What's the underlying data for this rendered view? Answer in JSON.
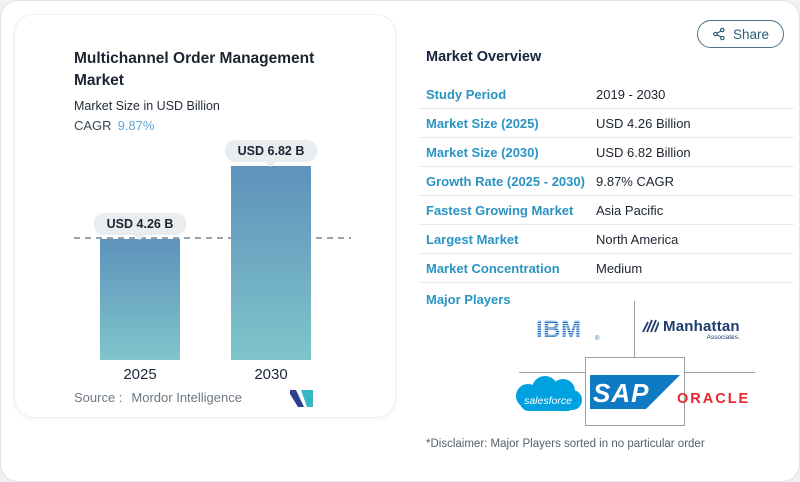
{
  "share": {
    "label": "Share"
  },
  "chart_card": {
    "title": "Multichannel Order Management Market",
    "subtitle": "Market Size in USD Billion",
    "cagr_label": "CAGR",
    "cagr_value": "9.87%",
    "bars": [
      {
        "year": "2025",
        "label": "USD 4.26 B"
      },
      {
        "year": "2030",
        "label": "USD 6.82 B"
      }
    ],
    "source_label": "Source :",
    "source_value": "Mordor Intelligence"
  },
  "chart_data": {
    "type": "bar",
    "title": "Multichannel Order Management Market",
    "ylabel": "Market Size in USD Billion",
    "categories": [
      "2025",
      "2030"
    ],
    "values": [
      4.26,
      6.82
    ],
    "data_labels": [
      "USD 4.26 B",
      "USD 6.82 B"
    ],
    "cagr": "9.87%",
    "reference_line_at": 4.26,
    "ylim": [
      0,
      7.5
    ],
    "grid": false,
    "bar_gradient": [
      "#5e92bb",
      "#7fc5cb"
    ]
  },
  "overview": {
    "title": "Market Overview",
    "rows": [
      {
        "label": "Study Period",
        "value": "2019 - 2030"
      },
      {
        "label": "Market Size (2025)",
        "value": "USD 4.26 Billion"
      },
      {
        "label": "Market Size (2030)",
        "value": "USD 6.82 Billion"
      },
      {
        "label": "Growth Rate (2025 - 2030)",
        "value": "9.87% CAGR"
      },
      {
        "label": "Fastest Growing Market",
        "value": "Asia Pacific"
      },
      {
        "label": "Largest Market",
        "value": "North America"
      },
      {
        "label": "Market Concentration",
        "value": "Medium"
      }
    ],
    "major_players_label": "Major Players",
    "logos": {
      "ibm": "IBM",
      "ibm_reg": "®",
      "manhattan": "Manhattan",
      "manhattan_sub": "Associates.",
      "salesforce": "salesforce",
      "sap": "SAP",
      "oracle": "ORACLE"
    },
    "disclaimer": "*Disclaimer: Major Players sorted in no particular order"
  },
  "colors": {
    "accent_blue": "#2994c4",
    "navy": "#16243e",
    "cagr_blue": "#5fa8d6",
    "share": "#2f5d74",
    "ibm_blue": "#1f70c1",
    "manhattan_navy": "#1d3d6e",
    "salesforce_blue": "#00a1e0",
    "sap_blue": "#0e7ac4",
    "oracle_red": "#e6262c",
    "mordor_navy": "#2e3f8f",
    "mordor_teal": "#36b7c3"
  }
}
